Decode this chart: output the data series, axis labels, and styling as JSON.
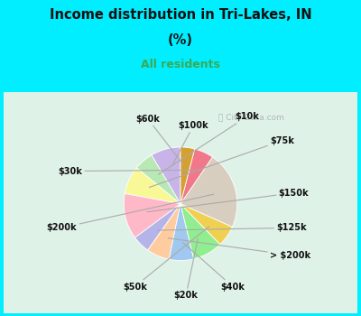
{
  "title_line1": "Income distribution in Tri-Lakes, IN",
  "title_line2": "(%)",
  "subtitle": "All residents",
  "title_color": "#111111",
  "subtitle_color": "#3aaa55",
  "bg_outer": "#00eeff",
  "bg_inner": "#dff2e8",
  "labels": [
    "$100k",
    "$10k",
    "$75k",
    "$150k",
    "$125k",
    "> $200k",
    "$40k",
    "$20k",
    "$50k",
    "$200k",
    "$30k",
    "$60k"
  ],
  "sizes": [
    8.5,
    5.5,
    8.0,
    13.0,
    5.0,
    6.5,
    7.0,
    8.5,
    6.0,
    22.0,
    5.5,
    4.0
  ],
  "colors": [
    "#c8b4e8",
    "#b8e8b4",
    "#f8f896",
    "#ffb8c8",
    "#b4b4e8",
    "#ffcca0",
    "#a0c8f0",
    "#90ee90",
    "#f0d050",
    "#d8cec0",
    "#f07888",
    "#d4a030"
  ],
  "watermark": "ⓘ City-Data.com",
  "start_angle": 90
}
